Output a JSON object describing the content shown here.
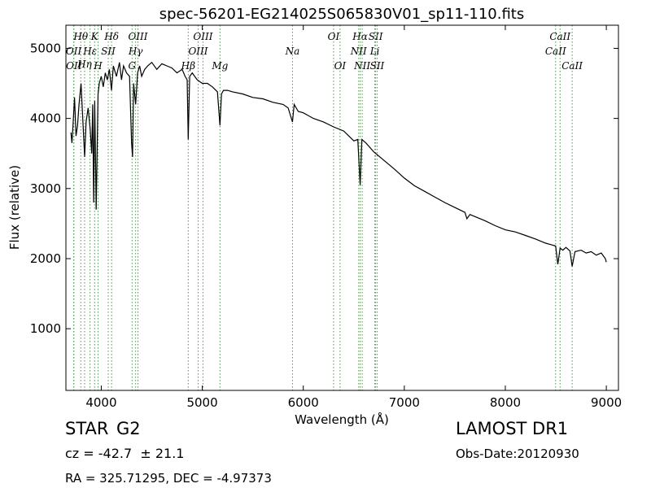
{
  "chart_data": {
    "type": "line",
    "title": "spec-56201-EG214025S065830V01_sp11-110.fits",
    "xlabel": "Wavelength (Å)",
    "ylabel": "Flux (relative)",
    "xlim": [
      3650,
      9120
    ],
    "ylim": [
      120,
      5330
    ],
    "xticks": [
      4000,
      5000,
      6000,
      7000,
      8000,
      9000
    ],
    "yticks": [
      1000,
      2000,
      3000,
      4000,
      5000
    ],
    "grid": false,
    "line_color": "#000000",
    "marker_color": "#33aa33",
    "series": [
      {
        "x": [
          3700,
          3710,
          3720,
          3735,
          3750,
          3765,
          3780,
          3800,
          3820,
          3835,
          3850,
          3870,
          3890,
          3905,
          3915,
          3925,
          3935,
          3950,
          3968,
          3980,
          4000,
          4020,
          4040,
          4060,
          4080,
          4101,
          4120,
          4150,
          4180,
          4200,
          4220,
          4250,
          4280,
          4300,
          4310,
          4320,
          4340,
          4360,
          4380,
          4400,
          4430,
          4460,
          4500,
          4550,
          4600,
          4650,
          4700,
          4750,
          4800,
          4830,
          4850,
          4861,
          4875,
          4900,
          4950,
          5000,
          5050,
          5100,
          5150,
          5175,
          5190,
          5210,
          5250,
          5300,
          5400,
          5500,
          5600,
          5700,
          5800,
          5850,
          5893,
          5910,
          5950,
          6000,
          6100,
          6200,
          6300,
          6400,
          6450,
          6500,
          6540,
          6563,
          6580,
          6620,
          6700,
          6800,
          6900,
          7000,
          7100,
          7200,
          7300,
          7400,
          7500,
          7600,
          7620,
          7650,
          7700,
          7800,
          7900,
          8000,
          8100,
          8200,
          8300,
          8400,
          8450,
          8498,
          8520,
          8542,
          8570,
          8600,
          8640,
          8662,
          8690,
          8750,
          8800,
          8850,
          8900,
          8950,
          8990,
          9000
        ],
        "y": [
          3800,
          3650,
          3900,
          4300,
          3750,
          3900,
          4200,
          4500,
          3900,
          3450,
          3950,
          4150,
          3850,
          3500,
          4200,
          2800,
          4250,
          2700,
          4350,
          4500,
          4600,
          4450,
          4650,
          4550,
          4700,
          4400,
          4750,
          4600,
          4800,
          4550,
          4750,
          4650,
          4600,
          3650,
          3450,
          4500,
          4200,
          4650,
          4750,
          4600,
          4700,
          4750,
          4800,
          4700,
          4780,
          4750,
          4720,
          4650,
          4700,
          4600,
          4550,
          3700,
          4600,
          4650,
          4550,
          4500,
          4500,
          4450,
          4380,
          3900,
          4350,
          4400,
          4400,
          4380,
          4350,
          4300,
          4280,
          4230,
          4200,
          4150,
          3950,
          4200,
          4100,
          4080,
          4000,
          3950,
          3880,
          3820,
          3750,
          3680,
          3700,
          3050,
          3700,
          3650,
          3520,
          3400,
          3280,
          3150,
          3040,
          2960,
          2880,
          2800,
          2730,
          2660,
          2570,
          2630,
          2600,
          2540,
          2470,
          2410,
          2380,
          2330,
          2280,
          2220,
          2200,
          2180,
          1920,
          2150,
          2120,
          2160,
          2110,
          1890,
          2100,
          2120,
          2080,
          2100,
          2050,
          2080,
          2000,
          1950
        ]
      }
    ],
    "line_markers": [
      {
        "label": "Hθ",
        "x": 3797,
        "row": 1
      },
      {
        "label": "K",
        "x": 3934,
        "row": 1
      },
      {
        "label": "Hδ",
        "x": 4102,
        "row": 1
      },
      {
        "label": "OIII",
        "x": 4363,
        "row": 1
      },
      {
        "label": "OIII",
        "x": 5007,
        "row": 1
      },
      {
        "label": "OI",
        "x": 6300,
        "row": 1
      },
      {
        "label": "Hα",
        "x": 6563,
        "row": 1
      },
      {
        "label": "SII",
        "x": 6716,
        "row": 1
      },
      {
        "label": "CaII",
        "x": 8542,
        "row": 1
      },
      {
        "label": "OII",
        "x": 3727,
        "row": 2
      },
      {
        "label": "Hε",
        "x": 3889,
        "row": 2
      },
      {
        "label": "SII",
        "x": 4069,
        "row": 2
      },
      {
        "label": "Hγ",
        "x": 4340,
        "row": 2
      },
      {
        "label": "OIII",
        "x": 4959,
        "row": 2
      },
      {
        "label": "Na",
        "x": 5893,
        "row": 2
      },
      {
        "label": "NII",
        "x": 6548,
        "row": 2
      },
      {
        "label": "Li",
        "x": 6708,
        "row": 2
      },
      {
        "label": "CaII",
        "x": 8498,
        "row": 2
      },
      {
        "label": "Hη",
        "x": 3835,
        "row": 3
      },
      {
        "label": "OII",
        "x": 3729,
        "row": 4
      },
      {
        "label": "H",
        "x": 3968,
        "row": 4
      },
      {
        "label": "G",
        "x": 4305,
        "row": 4
      },
      {
        "label": "Hβ",
        "x": 4861,
        "row": 4
      },
      {
        "label": "Mg",
        "x": 5175,
        "row": 4
      },
      {
        "label": "OI",
        "x": 6364,
        "row": 4
      },
      {
        "label": "NII",
        "x": 6583,
        "row": 4
      },
      {
        "label": "SII",
        "x": 6731,
        "row": 4
      },
      {
        "label": "CaII",
        "x": 8662,
        "row": 4
      }
    ]
  },
  "info": {
    "object_class": "STAR",
    "subclass": "G2",
    "survey": "LAMOST DR1",
    "redshift": "cz = -42.7  ± 21.1",
    "obs_date": "Obs-Date:20120930",
    "coords": "RA = 325.71295, DEC = -4.97373"
  }
}
